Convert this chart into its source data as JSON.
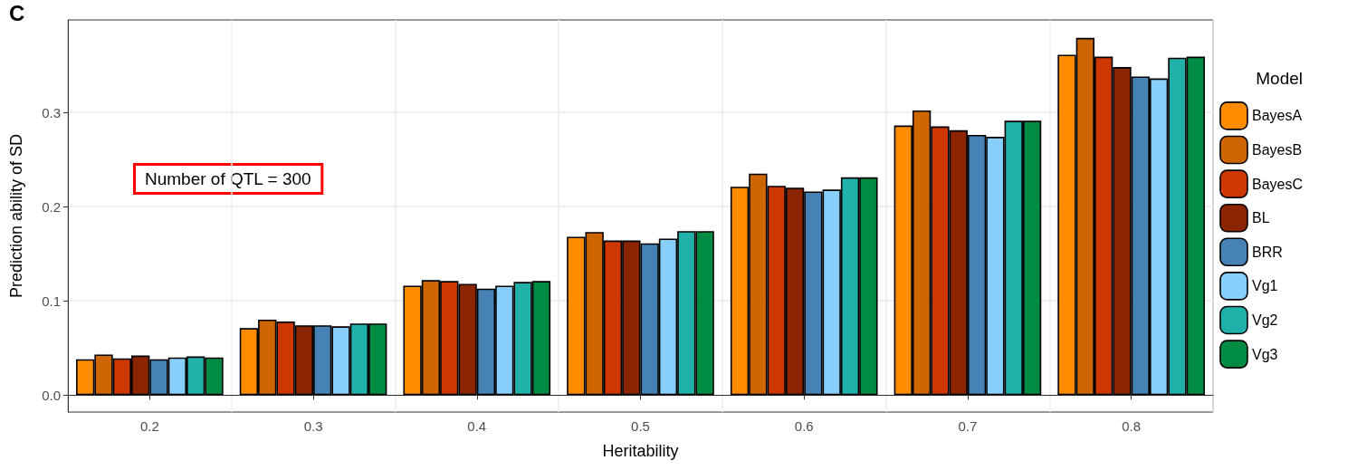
{
  "chart_data": {
    "type": "bar",
    "xlabel": "Heritability",
    "ylabel": "Prediction ability of SD",
    "legend_title": "Model",
    "annotations": [
      "C",
      "Number of QTL = 300"
    ],
    "categories": [
      "0.2",
      "0.3",
      "0.4",
      "0.5",
      "0.6",
      "0.7",
      "0.8"
    ],
    "series": [
      {
        "name": "BayesA",
        "color": "#ff8c00",
        "values": [
          0.038,
          0.071,
          0.116,
          0.168,
          0.221,
          0.286,
          0.361
        ]
      },
      {
        "name": "BayesB",
        "color": "#cd6600",
        "values": [
          0.043,
          0.08,
          0.122,
          0.173,
          0.235,
          0.302,
          0.379
        ]
      },
      {
        "name": "BayesC",
        "color": "#cd3700",
        "values": [
          0.039,
          0.078,
          0.121,
          0.164,
          0.222,
          0.285,
          0.359
        ]
      },
      {
        "name": "BL",
        "color": "#8b2500",
        "values": [
          0.042,
          0.074,
          0.118,
          0.164,
          0.22,
          0.281,
          0.348
        ]
      },
      {
        "name": "BRR",
        "color": "#4682b4",
        "values": [
          0.038,
          0.074,
          0.113,
          0.161,
          0.216,
          0.276,
          0.338
        ]
      },
      {
        "name": "Vg1",
        "color": "#87cefa",
        "values": [
          0.04,
          0.073,
          0.116,
          0.166,
          0.218,
          0.274,
          0.336
        ]
      },
      {
        "name": "Vg2",
        "color": "#20b2aa",
        "values": [
          0.041,
          0.076,
          0.12,
          0.174,
          0.231,
          0.291,
          0.358
        ]
      },
      {
        "name": "Vg3",
        "color": "#008b45",
        "values": [
          0.04,
          0.076,
          0.121,
          0.174,
          0.231,
          0.291,
          0.359
        ]
      }
    ],
    "ylim": [
      -0.018,
      0.398
    ],
    "yticks": [
      {
        "value": 0,
        "label": "0.0"
      },
      {
        "value": 0.1,
        "label": "0.1"
      },
      {
        "value": 0.2,
        "label": "0.2"
      },
      {
        "value": 0.3,
        "label": "0.3"
      }
    ],
    "grid": true,
    "legend": "right"
  }
}
